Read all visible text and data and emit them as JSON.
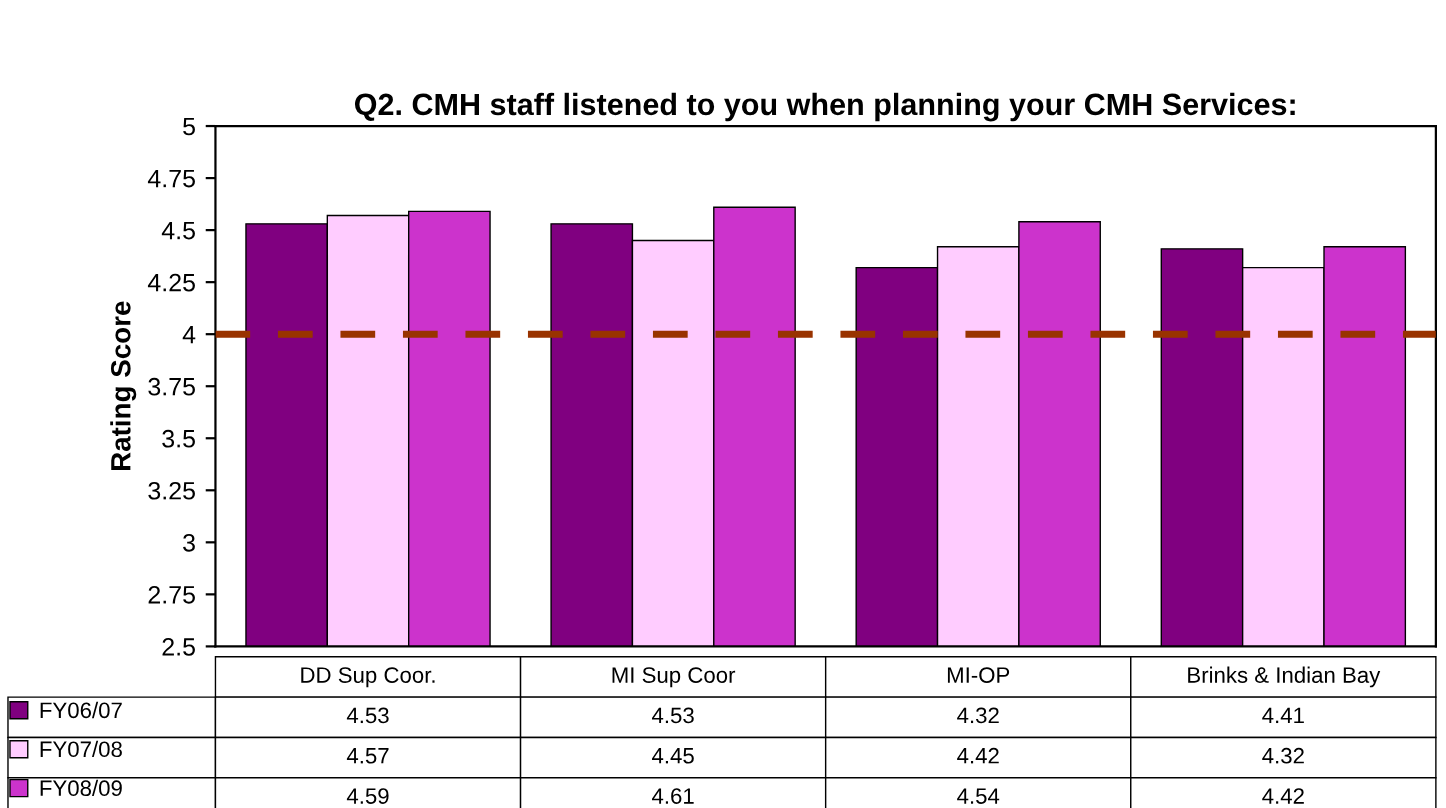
{
  "chart_data": {
    "type": "bar",
    "title": "Q2. CMH staff listened to you when planning your CMH Services:",
    "ylabel": "Rating Score",
    "categories": [
      "DD Sup Coor.",
      "MI Sup Coor",
      "MI-OP",
      "Brinks & Indian Bay"
    ],
    "series": [
      {
        "name": "FY06/07",
        "color": "#800080",
        "values": [
          4.53,
          4.53,
          4.32,
          4.41
        ]
      },
      {
        "name": "FY07/08",
        "color": "#ffccff",
        "values": [
          4.57,
          4.45,
          4.42,
          4.32
        ]
      },
      {
        "name": "FY08/09",
        "color": "#cc33cc",
        "values": [
          4.59,
          4.61,
          4.54,
          4.42
        ]
      }
    ],
    "ylim": [
      2.5,
      5
    ],
    "yticks": [
      2.5,
      2.75,
      3,
      3.25,
      3.5,
      3.75,
      4,
      4.25,
      4.5,
      4.75,
      5
    ],
    "ref_lines": [
      {
        "axis": "y",
        "value": 4,
        "color": "#993300",
        "line_style": "dashed"
      }
    ],
    "data_labels": true,
    "legend": "bottom",
    "grid": false
  }
}
